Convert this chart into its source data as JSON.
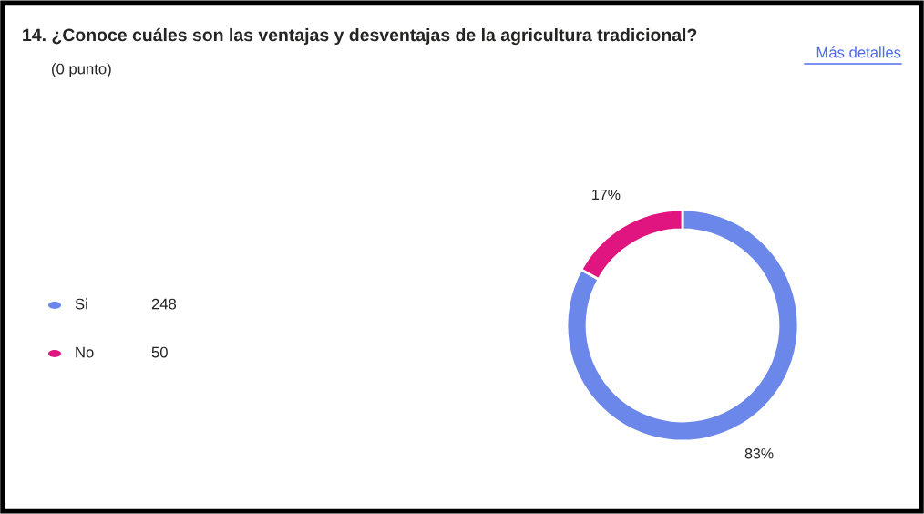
{
  "chart_data": {
    "type": "donut",
    "title": "14. ¿Conoce cuáles son las ventajas y desventajas de la agricultura tradicional?",
    "subtitle": "(0 punto)",
    "categories": [
      "Si",
      "No"
    ],
    "values": [
      83,
      17
    ],
    "colors": [
      "#6b87ea",
      "#e0157f"
    ],
    "value_labels": [
      "83%",
      "17%"
    ],
    "legend": "left",
    "annotations": [
      "Más detalles",
      {
        "text": "248",
        "x": "Si"
      },
      {
        "text": "50",
        "x": "No"
      }
    ]
  }
}
